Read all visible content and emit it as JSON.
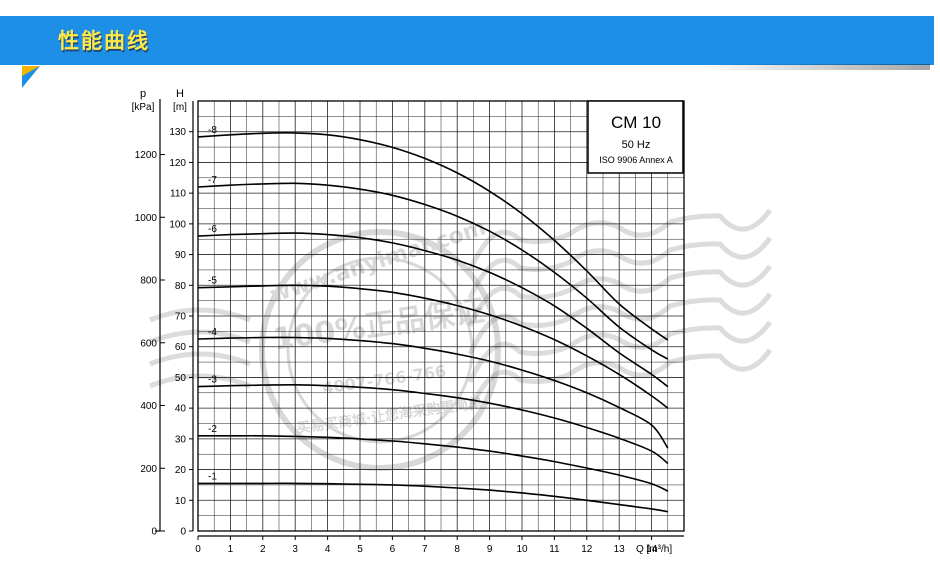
{
  "banner": {
    "title": "性能曲线"
  },
  "watermark": {
    "ring_top": "www.anyimai.com",
    "center": "100%正品保证",
    "phone": "4007-766-766",
    "ring_bottom": "买易买商城·让您海采购更简单"
  },
  "legend": {
    "model": "CM 10",
    "freq": "50 Hz",
    "standard": "ISO 9906 Annex A"
  },
  "colors": {
    "banner": "#1e8fe6",
    "banner_text": "#ffe94a",
    "curve": "#000000",
    "grid": "#222222"
  },
  "chart_data": {
    "type": "line",
    "xlabel": "Q [m³/h]",
    "ylabel_left": "p\n[kPa]",
    "ylabel_right": "H\n[m]",
    "xlim": [
      0,
      15
    ],
    "ylim": [
      0,
      140
    ],
    "x_ticks": [
      "0",
      "1",
      "2",
      "3",
      "4",
      "5",
      "6",
      "7",
      "8",
      "9",
      "10",
      "11",
      "12",
      "13",
      "14"
    ],
    "h_ticks": [
      "0",
      "10",
      "20",
      "30",
      "40",
      "50",
      "60",
      "70",
      "80",
      "90",
      "100",
      "110",
      "120",
      "130"
    ],
    "p_ticks": [
      "0",
      "200",
      "400",
      "600",
      "800",
      "1000",
      "1200"
    ],
    "p_scale_per_m": 9.79,
    "x": [
      0,
      1,
      2,
      3,
      4,
      5,
      6,
      7,
      8,
      9,
      10,
      11,
      12,
      13,
      14,
      14.5
    ],
    "series": [
      {
        "name": "-1",
        "values": [
          15.5,
          15.5,
          15.5,
          15.5,
          15.4,
          15.2,
          15,
          14.6,
          14,
          13.3,
          12.4,
          11.3,
          10,
          8.6,
          7.2,
          6.3
        ]
      },
      {
        "name": "-2",
        "values": [
          31,
          31,
          31,
          30.8,
          30.5,
          30,
          29.3,
          28.4,
          27.3,
          26,
          24.4,
          22.6,
          20.5,
          18.2,
          15.4,
          13
        ]
      },
      {
        "name": "-3",
        "values": [
          47,
          47.3,
          47.5,
          47.6,
          47.3,
          46.8,
          46,
          44.8,
          43.4,
          41.6,
          39.4,
          36.8,
          33.7,
          30.2,
          26,
          22
        ]
      },
      {
        "name": "-4",
        "values": [
          62.5,
          62.8,
          63,
          63,
          62.7,
          62,
          61,
          59.5,
          57.6,
          55.3,
          52.4,
          49,
          45,
          40.2,
          34.5,
          27
        ]
      },
      {
        "name": "-5",
        "values": [
          79.2,
          79.5,
          79.8,
          80,
          79.7,
          78.9,
          77.7,
          75.8,
          73.4,
          70.4,
          66.7,
          62.3,
          57,
          51,
          44,
          40
        ]
      },
      {
        "name": "-6",
        "values": [
          96,
          96.5,
          96.8,
          97,
          96.5,
          95.5,
          93.8,
          91.3,
          88.2,
          84.2,
          79.2,
          73.3,
          66,
          58,
          51,
          47
        ]
      },
      {
        "name": "-7",
        "values": [
          112,
          112.6,
          113,
          113.2,
          112.6,
          111.3,
          109.3,
          106.3,
          102.5,
          97.6,
          91.5,
          84.2,
          75.8,
          66.4,
          59,
          56
        ]
      },
      {
        "name": "-8",
        "values": [
          128.3,
          129,
          129.5,
          129.6,
          129,
          127.4,
          124.9,
          121.3,
          116.6,
          110.6,
          103.3,
          94.6,
          84.7,
          73.9,
          65.8,
          62.2
        ]
      }
    ]
  }
}
